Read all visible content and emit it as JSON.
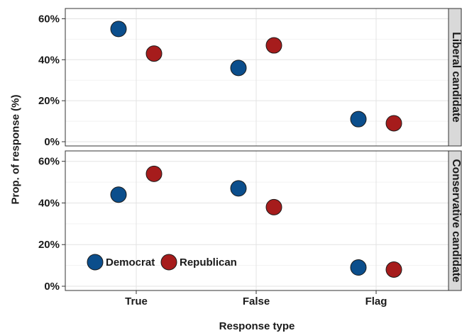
{
  "chart_data": {
    "type": "scatter",
    "xlabel": "Response type",
    "ylabel": "Prop. of response (%)",
    "categories": [
      "True",
      "False",
      "Flag"
    ],
    "ylim": [
      0,
      65
    ],
    "yticks": [
      0,
      20,
      40,
      60
    ],
    "ytick_labels": [
      "0%",
      "20%",
      "40%",
      "60%"
    ],
    "grid": true,
    "legend_position": "bottom-left",
    "colors": {
      "Democrat": "#0b4e8c",
      "Republican": "#a61c1c"
    },
    "panels": [
      {
        "label": "Liberal candidate",
        "series": [
          {
            "name": "Democrat",
            "values": [
              55,
              36,
              11
            ]
          },
          {
            "name": "Republican",
            "values": [
              43,
              47,
              9
            ]
          }
        ]
      },
      {
        "label": "Conservative candidate",
        "series": [
          {
            "name": "Democrat",
            "values": [
              44,
              47,
              9
            ]
          },
          {
            "name": "Republican",
            "values": [
              54,
              38,
              8
            ]
          }
        ]
      }
    ],
    "legend": [
      "Democrat",
      "Republican"
    ]
  }
}
